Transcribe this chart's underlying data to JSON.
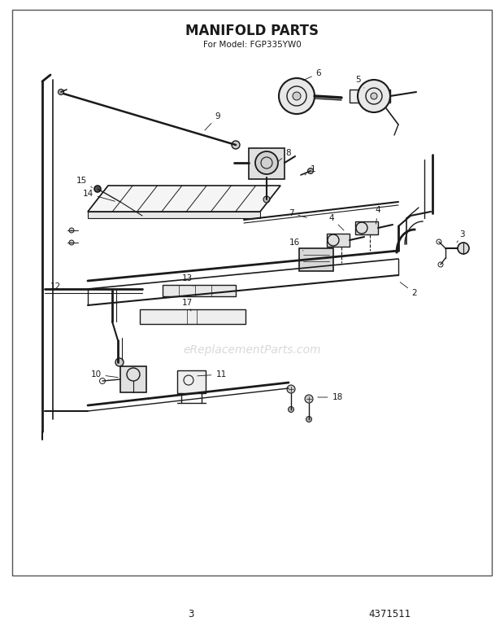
{
  "title": "MANIFOLD PARTS",
  "subtitle": "For Model: FGP335YW0",
  "page_number": "3",
  "part_number": "4371511",
  "background_color": "#ffffff",
  "line_color": "#1a1a1a",
  "watermark_text": "eReplacementParts.com",
  "watermark_color": "#bbbbbb",
  "watermark_alpha": 0.55,
  "title_fontsize": 12,
  "subtitle_fontsize": 7.5,
  "label_fontsize": 7.5,
  "footer_fontsize": 8.5,
  "fig_width": 6.2,
  "fig_height": 7.85
}
